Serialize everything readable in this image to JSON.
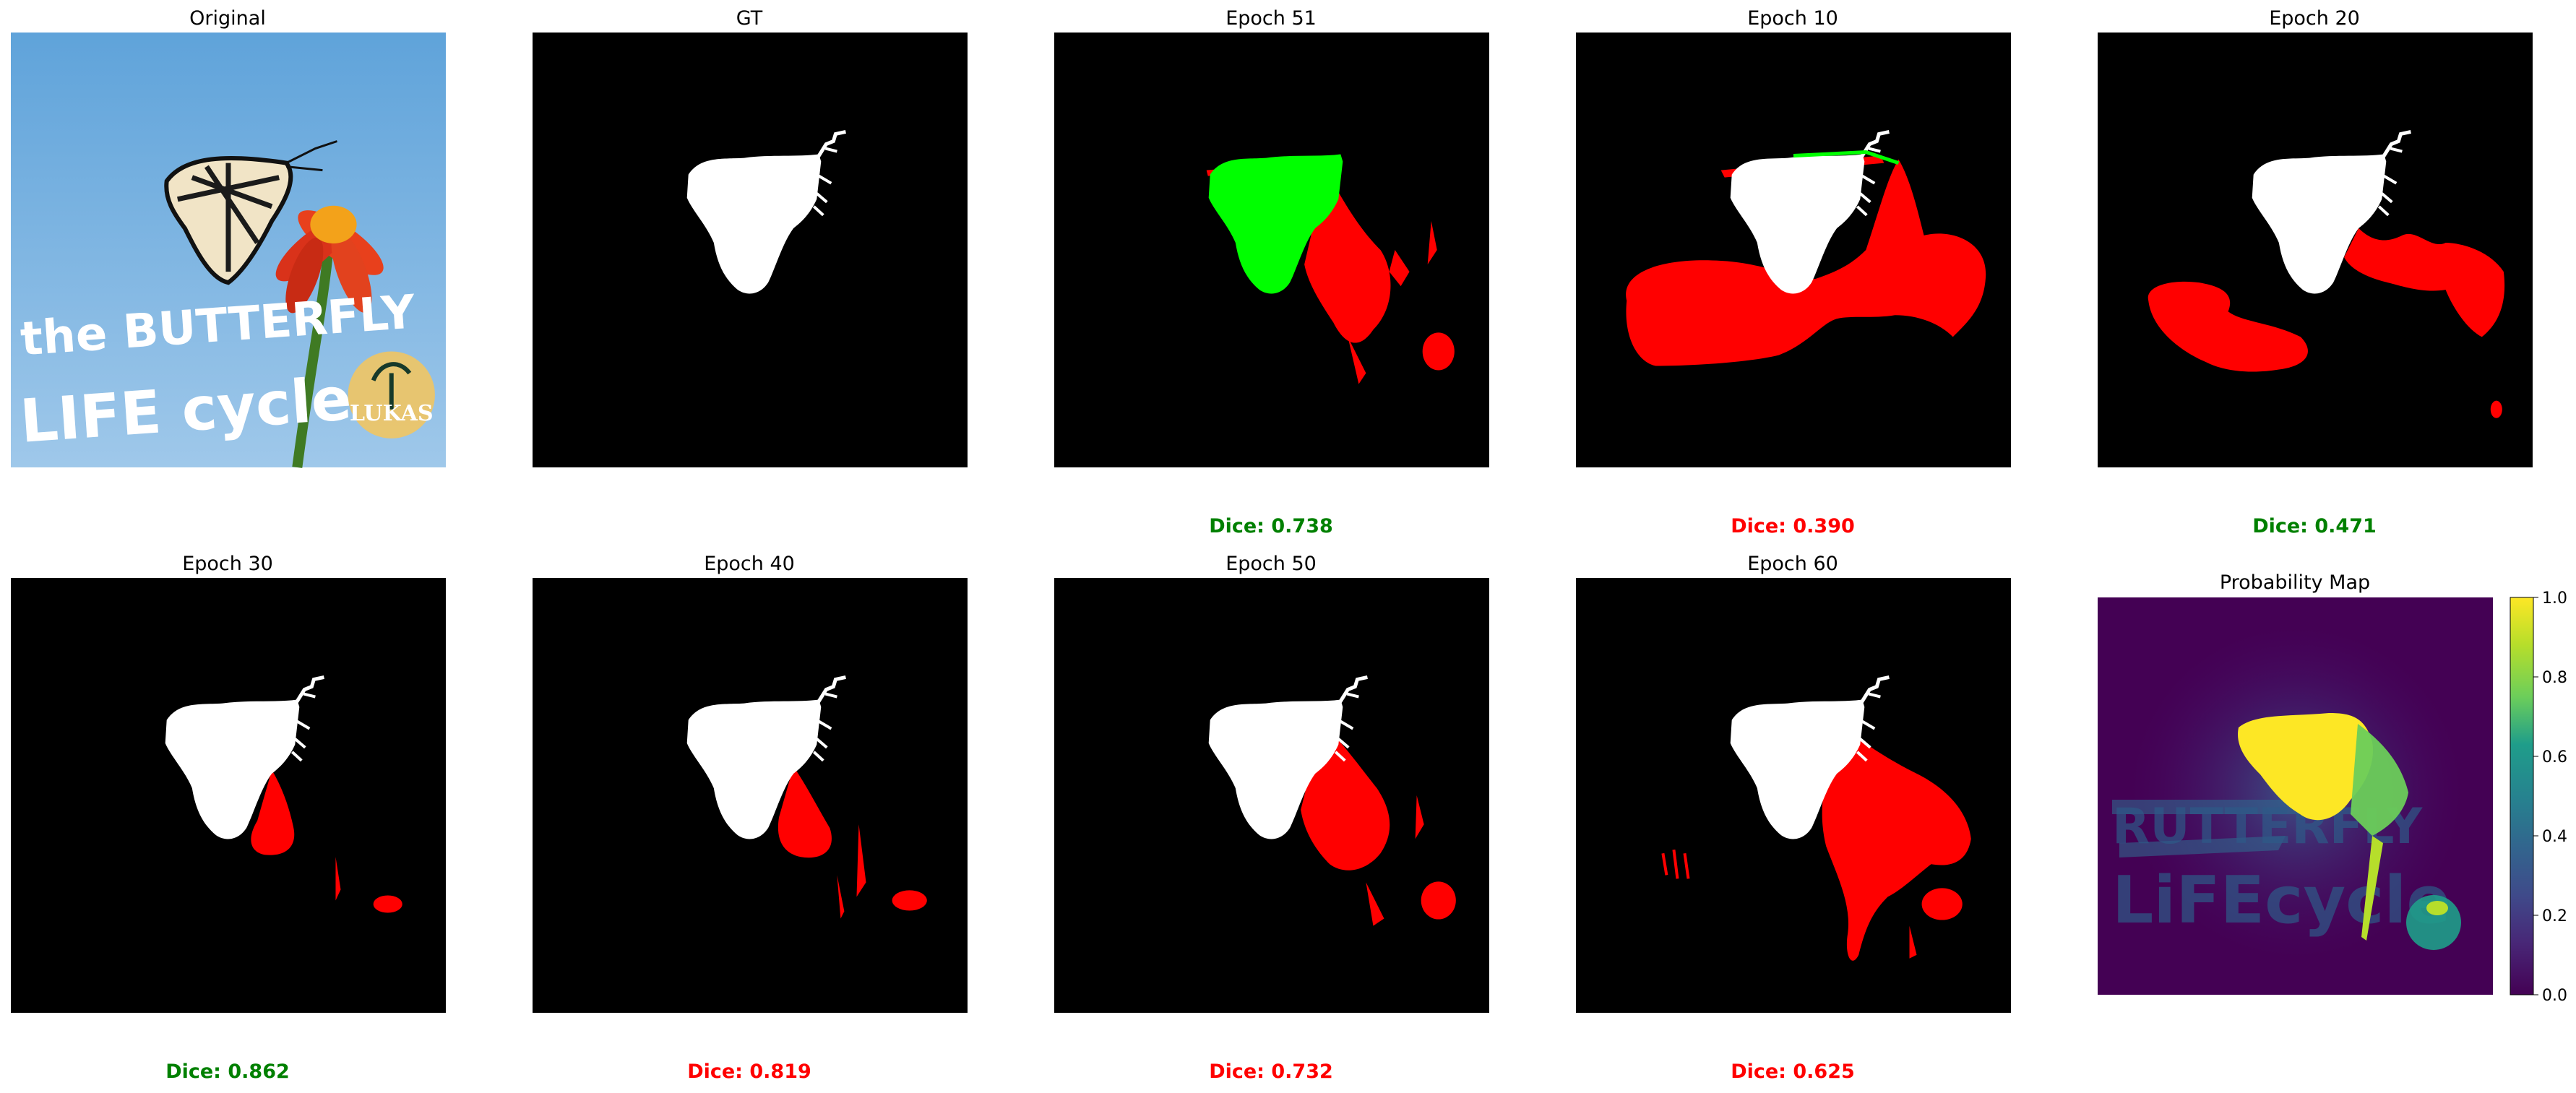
{
  "figure": {
    "panels": [
      {
        "id": "original",
        "title": "Original",
        "kind": "photo",
        "overlay_text": {
          "line1": "the BUTTERFLY",
          "line2": "LIFE cycle",
          "logo": "LUKAS"
        }
      },
      {
        "id": "gt",
        "title": "GT",
        "kind": "mask"
      },
      {
        "id": "epoch51",
        "title": "Epoch 51",
        "kind": "prediction",
        "dice": "Dice: 0.738",
        "dice_color": "#008000"
      },
      {
        "id": "epoch10",
        "title": "Epoch 10",
        "kind": "prediction",
        "dice": "Dice: 0.390",
        "dice_color": "#ff0000"
      },
      {
        "id": "epoch20",
        "title": "Epoch 20",
        "kind": "prediction",
        "dice": "Dice: 0.471",
        "dice_color": "#008000"
      },
      {
        "id": "epoch30",
        "title": "Epoch 30",
        "kind": "prediction",
        "dice": "Dice: 0.862",
        "dice_color": "#008000"
      },
      {
        "id": "epoch40",
        "title": "Epoch 40",
        "kind": "prediction",
        "dice": "Dice: 0.819",
        "dice_color": "#ff0000"
      },
      {
        "id": "epoch50",
        "title": "Epoch 50",
        "kind": "prediction",
        "dice": "Dice: 0.732",
        "dice_color": "#ff0000"
      },
      {
        "id": "epoch60",
        "title": "Epoch 60",
        "kind": "prediction",
        "dice": "Dice: 0.625",
        "dice_color": "#ff0000"
      },
      {
        "id": "probmap",
        "title": "Probability Map",
        "kind": "heatmap"
      }
    ],
    "colors": {
      "mask_white": "#ffffff",
      "background": "#000000",
      "false_positive": "#ff0000",
      "highlight": "#00ff00",
      "sky": "#5a9fd8"
    }
  },
  "chart_data": {
    "type": "heatmap",
    "title": "Probability Map",
    "colormap": "viridis",
    "colorbar": {
      "range": [
        0.0,
        1.0
      ],
      "ticks": [
        "0.0",
        "0.2",
        "0.4",
        "0.6",
        "0.8",
        "1.0"
      ]
    },
    "dice_scores": [
      {
        "label": "Epoch 51",
        "value": 0.738
      },
      {
        "label": "Epoch 10",
        "value": 0.39
      },
      {
        "label": "Epoch 20",
        "value": 0.471
      },
      {
        "label": "Epoch 30",
        "value": 0.862
      },
      {
        "label": "Epoch 40",
        "value": 0.819
      },
      {
        "label": "Epoch 50",
        "value": 0.732
      },
      {
        "label": "Epoch 60",
        "value": 0.625
      }
    ]
  }
}
